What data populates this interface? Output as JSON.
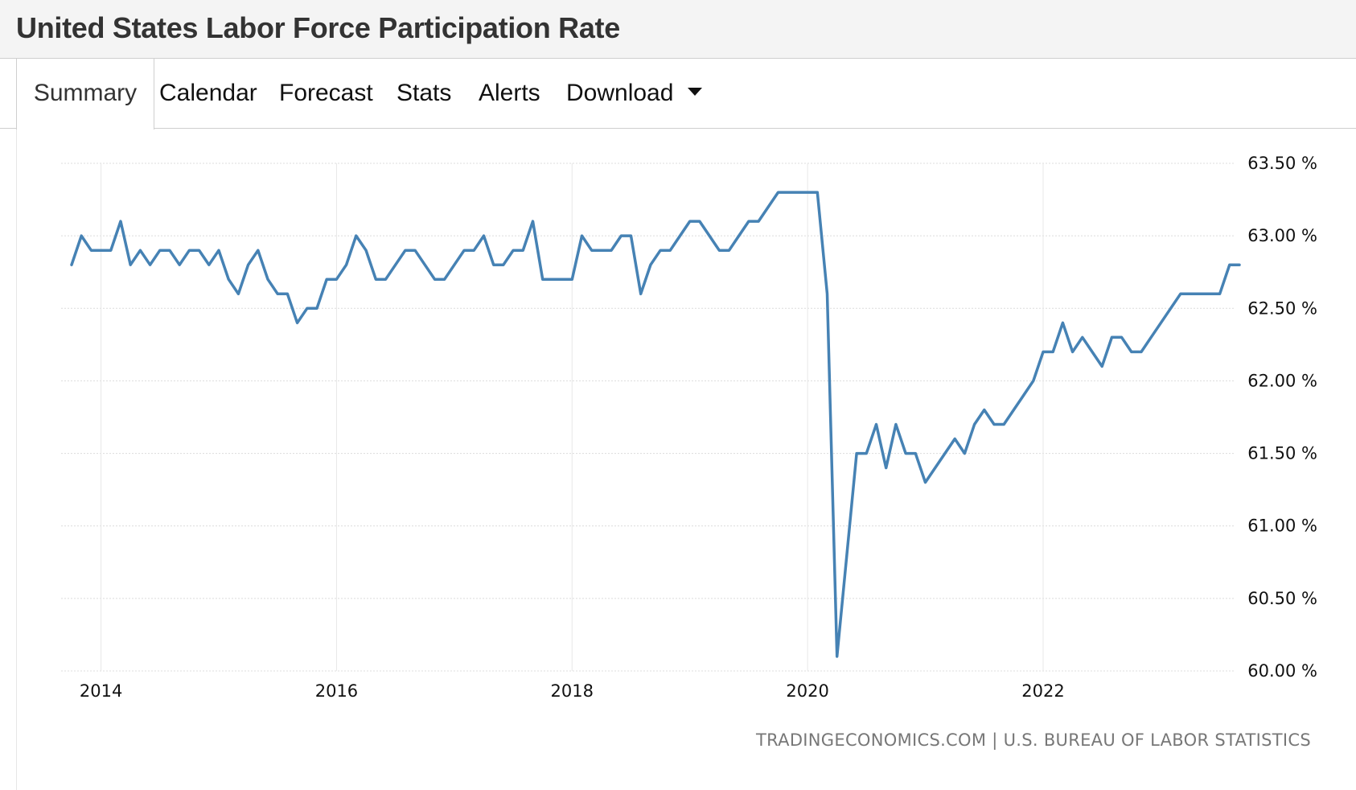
{
  "header": {
    "title": "United States Labor Force Participation Rate"
  },
  "tabs": [
    {
      "label": "Summary",
      "active": true
    },
    {
      "label": "Calendar"
    },
    {
      "label": "Forecast"
    },
    {
      "label": "Stats"
    },
    {
      "label": "Alerts"
    },
    {
      "label": "Download",
      "icon": "caret-down-icon"
    }
  ],
  "source": "TRADINGECONOMICS.COM | U.S. BUREAU OF LABOR STATISTICS",
  "colors": {
    "series": "#4682b4",
    "title_bg": "#f4f4f4",
    "text": "#333333"
  },
  "chart_data": {
    "type": "line",
    "title": "",
    "xlabel": "",
    "ylabel": "",
    "ylim": [
      60.0,
      63.5
    ],
    "y_ticks": [
      63.5,
      63.0,
      62.5,
      62.0,
      61.5,
      61.0,
      60.5,
      60.0
    ],
    "y_tick_labels": [
      "63.50 %",
      "63.00 %",
      "62.50 %",
      "62.00 %",
      "61.50 %",
      "61.00 %",
      "60.50 %",
      "60.00 %"
    ],
    "x_ticks": [
      "2014",
      "2016",
      "2018",
      "2020",
      "2022"
    ],
    "x_range": [
      "2013-10",
      "2023-09"
    ],
    "grid": true,
    "legend": "none",
    "series": [
      {
        "x": [
          "2013-10",
          "2013-11",
          "2013-12",
          "2014-01",
          "2014-02",
          "2014-03",
          "2014-04",
          "2014-05",
          "2014-06",
          "2014-07",
          "2014-08",
          "2014-09",
          "2014-10",
          "2014-11",
          "2014-12",
          "2015-01",
          "2015-02",
          "2015-03",
          "2015-04",
          "2015-05",
          "2015-06",
          "2015-07",
          "2015-08",
          "2015-09",
          "2015-10",
          "2015-11",
          "2015-12",
          "2016-01",
          "2016-02",
          "2016-03",
          "2016-04",
          "2016-05",
          "2016-06",
          "2016-07",
          "2016-08",
          "2016-09",
          "2016-10",
          "2016-11",
          "2016-12",
          "2017-01",
          "2017-02",
          "2017-03",
          "2017-04",
          "2017-05",
          "2017-06",
          "2017-07",
          "2017-08",
          "2017-09",
          "2017-10",
          "2017-11",
          "2017-12",
          "2018-01",
          "2018-02",
          "2018-03",
          "2018-04",
          "2018-05",
          "2018-06",
          "2018-07",
          "2018-08",
          "2018-09",
          "2018-10",
          "2018-11",
          "2018-12",
          "2019-01",
          "2019-02",
          "2019-03",
          "2019-04",
          "2019-05",
          "2019-06",
          "2019-07",
          "2019-08",
          "2019-09",
          "2019-10",
          "2019-11",
          "2019-12",
          "2020-01",
          "2020-02",
          "2020-03",
          "2020-04",
          "2020-05",
          "2020-06",
          "2020-07",
          "2020-08",
          "2020-09",
          "2020-10",
          "2020-11",
          "2020-12",
          "2021-01",
          "2021-02",
          "2021-03",
          "2021-04",
          "2021-05",
          "2021-06",
          "2021-07",
          "2021-08",
          "2021-09",
          "2021-10",
          "2021-11",
          "2021-12",
          "2022-01",
          "2022-02",
          "2022-03",
          "2022-04",
          "2022-05",
          "2022-06",
          "2022-07",
          "2022-08",
          "2022-09",
          "2022-10",
          "2022-11",
          "2022-12",
          "2023-01",
          "2023-02",
          "2023-03",
          "2023-04",
          "2023-05",
          "2023-06",
          "2023-07",
          "2023-08",
          "2023-09"
        ],
        "values": [
          62.8,
          63.0,
          62.9,
          62.9,
          62.9,
          63.1,
          62.8,
          62.9,
          62.8,
          62.9,
          62.9,
          62.8,
          62.9,
          62.9,
          62.8,
          62.9,
          62.7,
          62.6,
          62.8,
          62.9,
          62.7,
          62.6,
          62.6,
          62.4,
          62.5,
          62.5,
          62.7,
          62.7,
          62.8,
          63.0,
          62.9,
          62.7,
          62.7,
          62.8,
          62.9,
          62.9,
          62.8,
          62.7,
          62.7,
          62.8,
          62.9,
          62.9,
          63.0,
          62.8,
          62.8,
          62.9,
          62.9,
          63.1,
          62.7,
          62.7,
          62.7,
          62.7,
          63.0,
          62.9,
          62.9,
          62.9,
          63.0,
          63.0,
          62.6,
          62.8,
          62.9,
          62.9,
          63.0,
          63.1,
          63.1,
          63.0,
          62.9,
          62.9,
          63.0,
          63.1,
          63.1,
          63.2,
          63.3,
          63.3,
          63.3,
          63.3,
          63.3,
          62.6,
          60.1,
          60.8,
          61.5,
          61.5,
          61.7,
          61.4,
          61.7,
          61.5,
          61.5,
          61.3,
          61.4,
          61.5,
          61.6,
          61.5,
          61.7,
          61.8,
          61.7,
          61.7,
          61.8,
          61.9,
          62.0,
          62.2,
          62.2,
          62.4,
          62.2,
          62.3,
          62.2,
          62.1,
          62.3,
          62.3,
          62.2,
          62.2,
          62.3,
          62.4,
          62.5,
          62.6,
          62.6,
          62.6,
          62.6,
          62.6,
          62.8,
          62.8
        ]
      }
    ]
  }
}
